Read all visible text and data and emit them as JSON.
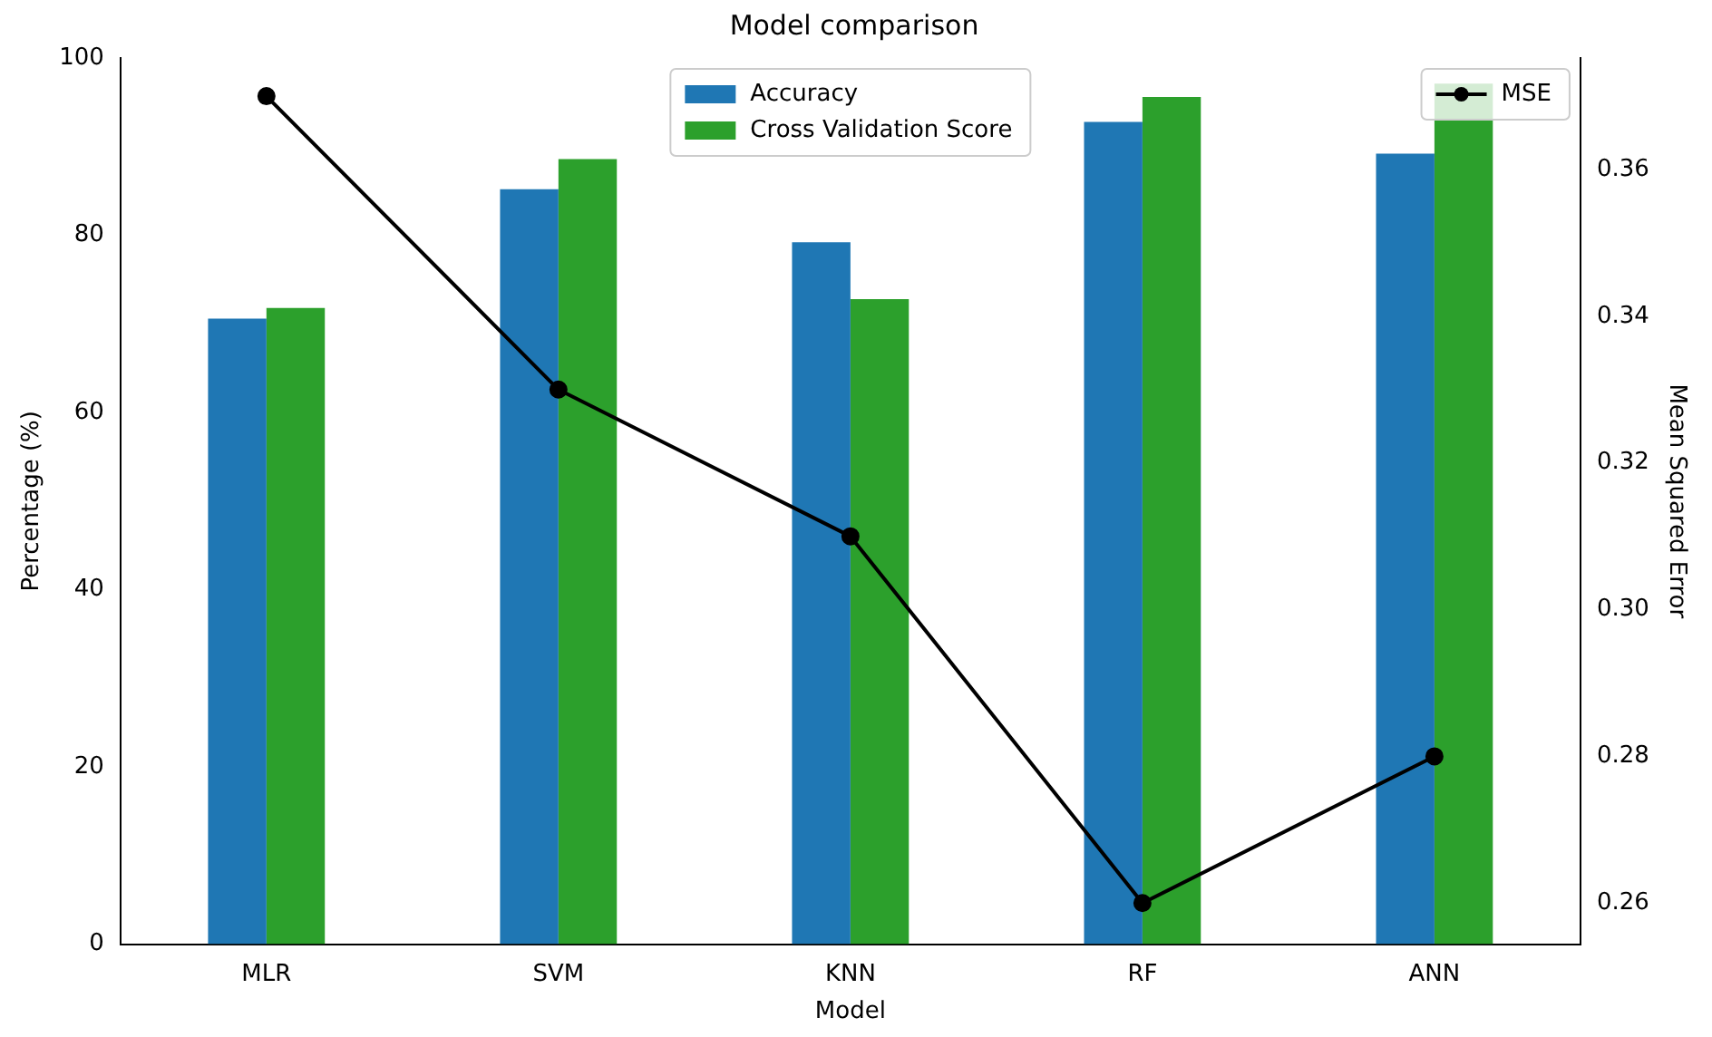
{
  "chart_data": {
    "type": "bar",
    "title": "Model comparison",
    "xlabel": "Model",
    "ylabel": "Percentage (%)",
    "y2label": "Mean Squared Error",
    "categories": [
      "MLR",
      "SVM",
      "KNN",
      "RF",
      "ANN"
    ],
    "series": [
      {
        "name": "Accuracy",
        "color": "#1f77b4",
        "values": [
          70.6,
          85.2,
          79.2,
          92.8,
          89.2
        ]
      },
      {
        "name": "Cross Validation Score",
        "color": "#2ca02c",
        "values": [
          71.8,
          88.6,
          72.8,
          95.6,
          97.1
        ]
      },
      {
        "name": "MSE",
        "type": "line",
        "axis": "y2",
        "color": "#000000",
        "values": [
          0.37,
          0.33,
          0.31,
          0.26,
          0.28
        ],
        "marker": "circle",
        "line_style": "solid"
      }
    ],
    "ylim": [
      0,
      100
    ],
    "yticks": [
      0,
      20,
      40,
      60,
      80,
      100
    ],
    "y2lim": [
      0.2544,
      0.3752
    ],
    "y2ticks": [
      0.26,
      0.28,
      {
        "value": 0.3,
        "label": "0.30"
      },
      0.32,
      0.34,
      0.36
    ],
    "legend": "top",
    "grid": false
  }
}
